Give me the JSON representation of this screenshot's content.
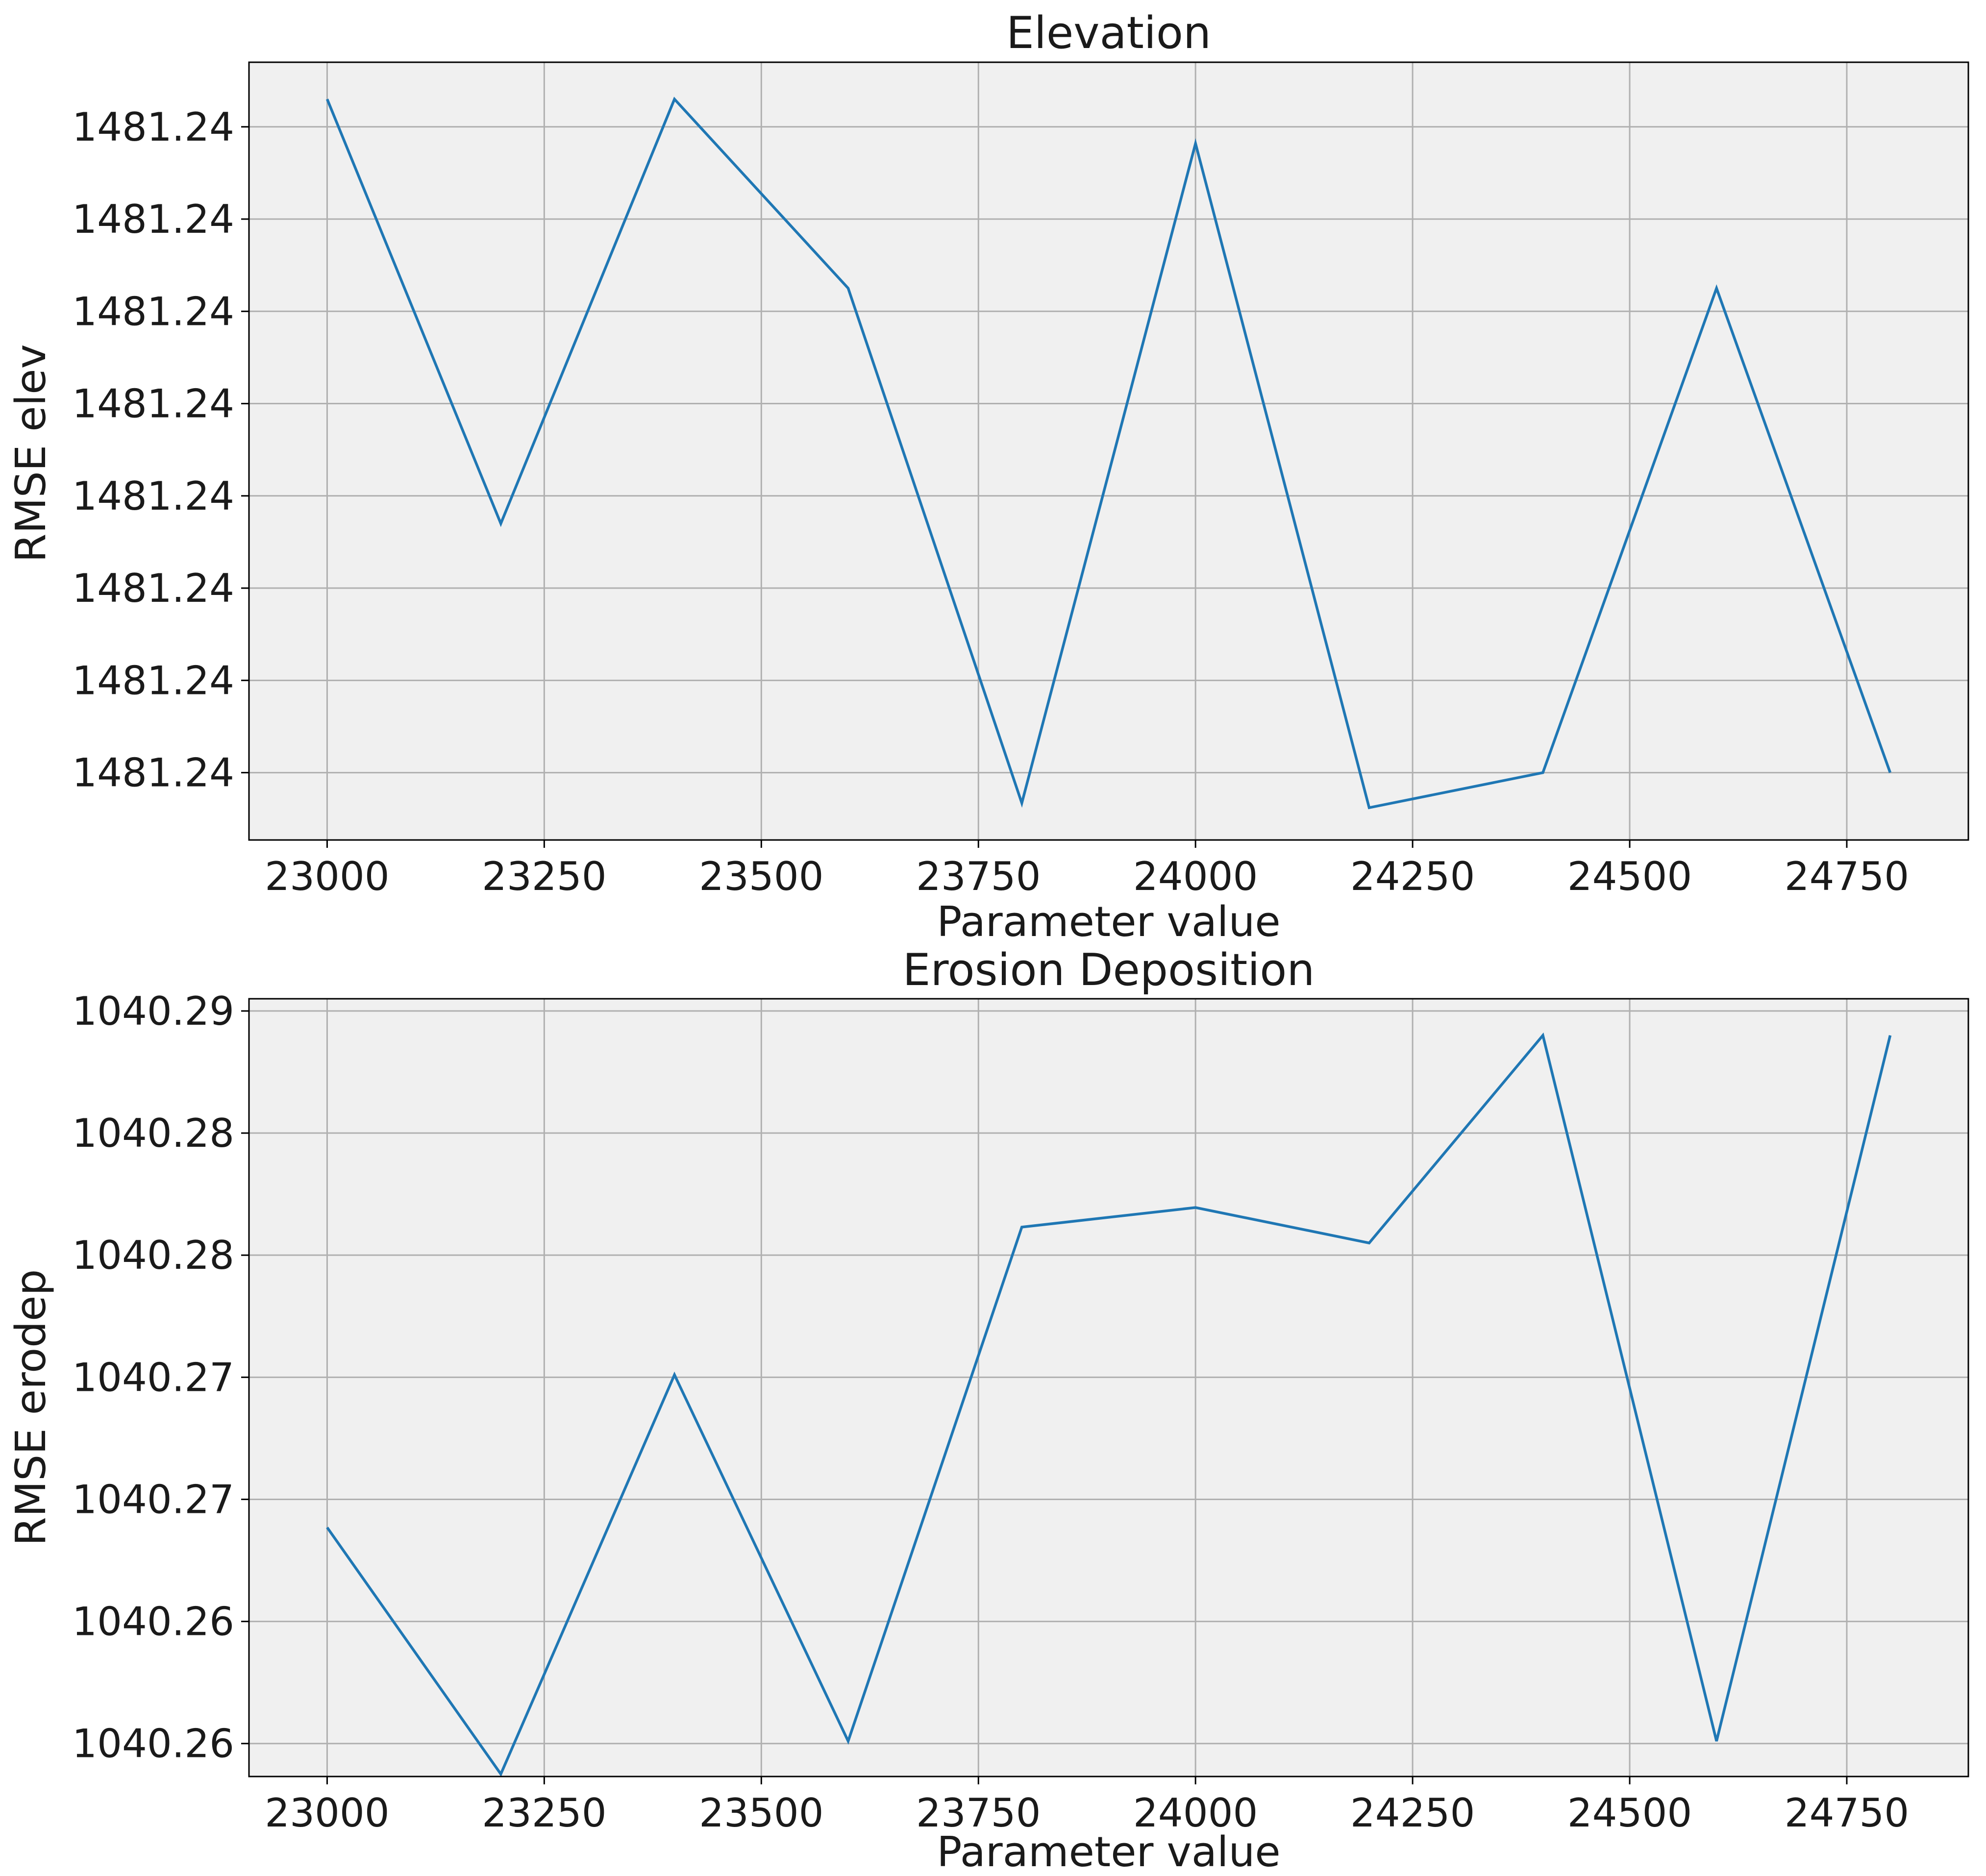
{
  "chart_data": [
    {
      "type": "line",
      "title": "Elevation",
      "xlabel": "Parameter value",
      "ylabel": "RMSE elev",
      "grid": true,
      "background_color": "#f0f0f0",
      "line_color": "#1f77b4",
      "xlim": [
        22910,
        24890
      ],
      "ylim": [
        -0.73,
        7.7
      ],
      "x_ticks": [
        23000,
        23250,
        23500,
        23750,
        24000,
        24250,
        24500,
        24750
      ],
      "x_tick_labels": [
        "23000",
        "23250",
        "23500",
        "23750",
        "24000",
        "24250",
        "24500",
        "24750"
      ],
      "y_ticks": [
        0,
        1,
        2,
        3,
        4,
        5,
        6,
        7
      ],
      "y_tick_labels": [
        "1481.24",
        "1481.24",
        "1481.24",
        "1481.24",
        "1481.24",
        "1481.24",
        "1481.24",
        "1481.24"
      ],
      "x": [
        23000,
        23200,
        23400,
        23600,
        23800,
        24000,
        24200,
        24400,
        24600,
        24800
      ],
      "y": [
        7.3,
        2.7,
        7.3,
        5.25,
        -0.33,
        6.82,
        -0.38,
        0.0,
        5.25,
        0.0
      ]
    },
    {
      "type": "line",
      "title": "Erosion Deposition",
      "xlabel": "Parameter value",
      "ylabel": "RMSE erodep",
      "grid": true,
      "background_color": "#f0f0f0",
      "line_color": "#1f77b4",
      "xlim": [
        22910,
        24890
      ],
      "ylim": [
        -0.27,
        6.1
      ],
      "x_ticks": [
        23000,
        23250,
        23500,
        23750,
        24000,
        24250,
        24500,
        24750
      ],
      "x_tick_labels": [
        "23000",
        "23250",
        "23500",
        "23750",
        "24000",
        "24250",
        "24500",
        "24750"
      ],
      "y_ticks": [
        0,
        1,
        2,
        3,
        4,
        5,
        6
      ],
      "y_tick_labels": [
        "1040.26",
        "1040.26",
        "1040.27",
        "1040.27",
        "1040.28",
        "1040.28",
        "1040.29"
      ],
      "x": [
        23000,
        23200,
        23400,
        23600,
        23800,
        24000,
        24200,
        24400,
        24600,
        24800
      ],
      "y": [
        1.77,
        -0.25,
        3.02,
        0.02,
        4.23,
        4.39,
        4.1,
        5.8,
        0.02,
        5.8
      ]
    }
  ]
}
